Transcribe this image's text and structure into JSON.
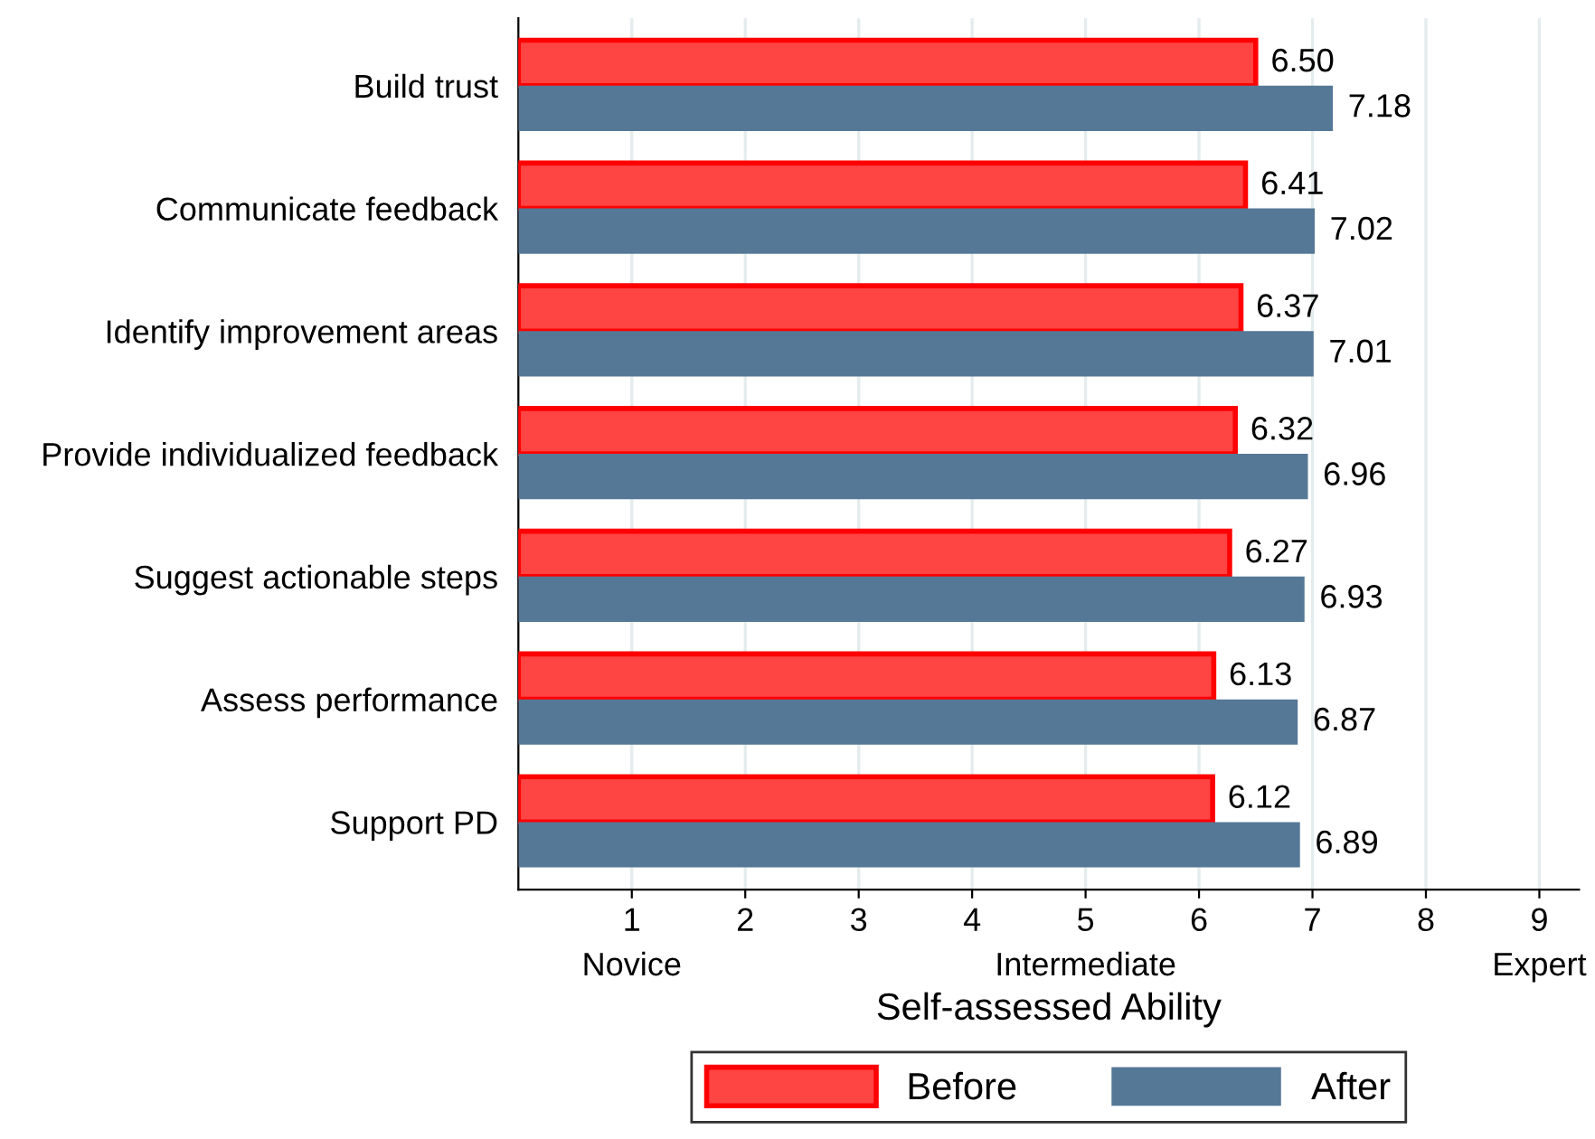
{
  "chart_data": {
    "type": "bar",
    "orientation": "horizontal",
    "xlabel": "Self-assessed Ability",
    "categories": [
      "Build trust",
      "Communicate feedback",
      "Identify improvement areas",
      "Provide individualized feedback",
      "Suggest actionable steps",
      "Assess performance",
      "Support PD"
    ],
    "series": [
      {
        "name": "Before",
        "color": "#ff4444",
        "values": [
          6.5,
          6.41,
          6.37,
          6.32,
          6.27,
          6.13,
          6.12
        ],
        "value_labels": [
          "6.50",
          "6.41",
          "6.37",
          "6.32",
          "6.27",
          "6.13",
          "6.12"
        ]
      },
      {
        "name": "After",
        "color": "#557896",
        "values": [
          7.18,
          7.02,
          7.01,
          6.96,
          6.93,
          6.87,
          6.89
        ],
        "value_labels": [
          "7.18",
          "7.02",
          "7.01",
          "6.96",
          "6.93",
          "6.87",
          "6.89"
        ]
      }
    ],
    "xlim": [
      0,
      9.35
    ],
    "xticks": [
      {
        "value": 1,
        "label": "1\nNovice"
      },
      2,
      3,
      4,
      {
        "value": 5,
        "label": "5\nIntermediate"
      },
      6,
      7,
      8,
      {
        "value": 9,
        "label": "9\nExpert"
      }
    ],
    "grid": "x",
    "legend": "bottom"
  }
}
